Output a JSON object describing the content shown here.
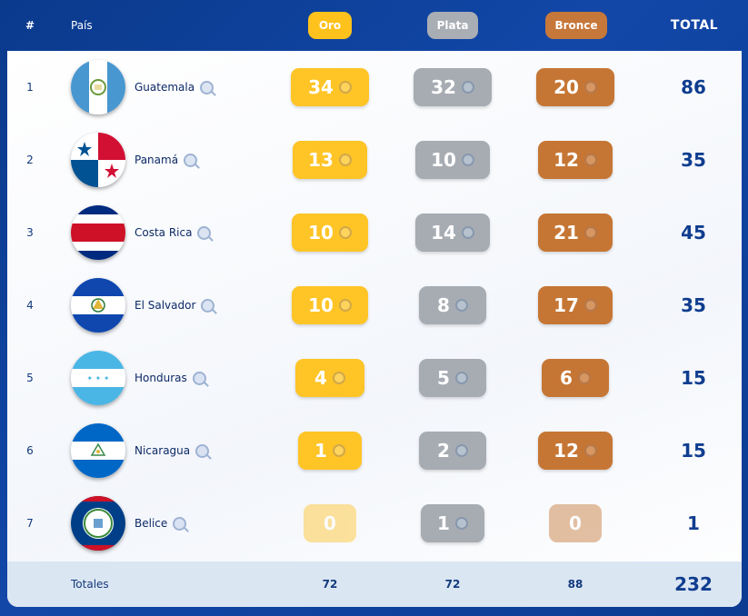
{
  "header": {
    "num_label": "#",
    "country_label": "País",
    "gold_label": "Oro",
    "silver_label": "Plata",
    "bronze_label": "Bronce",
    "total_label": "TOTAL"
  },
  "colors": {
    "gold": "#ffc426",
    "silver": "#a7acb3",
    "bronze": "#c67634",
    "accent": "#0f3d8f"
  },
  "rows": [
    {
      "rank": "1",
      "country": "Guatemala",
      "flag": "guatemala-flag-icon",
      "gold": "34",
      "silver": "32",
      "bronze": "20",
      "total": "86"
    },
    {
      "rank": "2",
      "country": "Panamá",
      "flag": "panama-flag-icon",
      "gold": "13",
      "silver": "10",
      "bronze": "12",
      "total": "35"
    },
    {
      "rank": "3",
      "country": "Costa Rica",
      "flag": "costa-rica-flag-icon",
      "gold": "10",
      "silver": "14",
      "bronze": "21",
      "total": "45"
    },
    {
      "rank": "4",
      "country": "El Salvador",
      "flag": "el-salvador-flag-icon",
      "gold": "10",
      "silver": "8",
      "bronze": "17",
      "total": "35"
    },
    {
      "rank": "5",
      "country": "Honduras",
      "flag": "honduras-flag-icon",
      "gold": "4",
      "silver": "5",
      "bronze": "6",
      "total": "15"
    },
    {
      "rank": "6",
      "country": "Nicaragua",
      "flag": "nicaragua-flag-icon",
      "gold": "1",
      "silver": "2",
      "bronze": "12",
      "total": "15"
    },
    {
      "rank": "7",
      "country": "Belice",
      "flag": "belize-flag-icon",
      "gold": "0",
      "silver": "1",
      "bronze": "0",
      "total": "1"
    }
  ],
  "footer": {
    "label": "Totales",
    "gold": "72",
    "silver": "72",
    "bronze": "88",
    "total": "232"
  }
}
